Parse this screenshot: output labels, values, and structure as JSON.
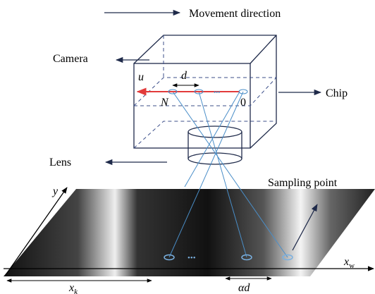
{
  "legend": {
    "movement": "Movement direction"
  },
  "labels": {
    "camera": "Camera",
    "chip": "Chip",
    "lens": "Lens",
    "sampling": "Sampling point"
  },
  "symbols": {
    "u": "u",
    "d": "d",
    "n": "N",
    "zero": "0",
    "y": "y",
    "xw": {
      "base": "x",
      "sub": "w"
    },
    "xk": {
      "base": "x",
      "sub": "k"
    },
    "ad": "αd",
    "dots_chip": "•••",
    "dots_ground": "•••"
  }
}
